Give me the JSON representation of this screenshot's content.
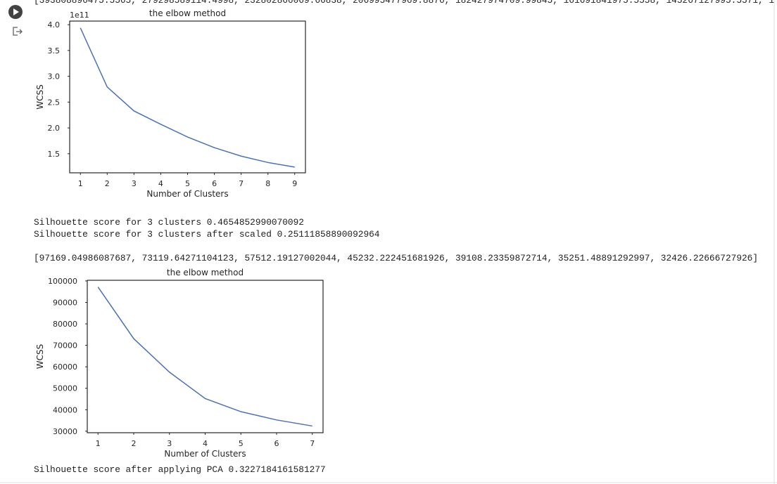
{
  "top_text": "[393808896475.5565, 279298589114.4998, 232802866069.66838, 206995477969.8876, 182427974709.99845, 161691841975.5558, 145267127995.5571, 1",
  "chart_data": [
    {
      "type": "line",
      "title": "the elbow method",
      "xlabel": "Number of Clusters",
      "ylabel": "WCSS",
      "y_offset_label": "1e11",
      "x": [
        1,
        2,
        3,
        4,
        5,
        6,
        7,
        8,
        9
      ],
      "values": [
        3.938,
        2.793,
        2.328,
        2.07,
        1.824,
        1.617,
        1.453,
        1.33,
        1.24
      ],
      "color": "#4c72b0",
      "xlim": [
        0.6,
        9.4
      ],
      "ylim": [
        1.13,
        4.07
      ],
      "xticks": [
        1,
        2,
        3,
        4,
        5,
        6,
        7,
        8,
        9
      ],
      "yticks": [
        {
          "value": 1.5,
          "label": "1.5"
        },
        {
          "value": 2,
          "label": "2.0"
        },
        {
          "value": 2.5,
          "label": "2.5"
        },
        {
          "value": 3,
          "label": "3.0"
        },
        {
          "value": 3.5,
          "label": "3.5"
        },
        {
          "value": 4,
          "label": "4.0"
        }
      ]
    },
    {
      "type": "line",
      "title": "the elbow method",
      "xlabel": "Number of Clusters",
      "ylabel": "WCSS",
      "x": [
        1,
        2,
        3,
        4,
        5,
        6,
        7
      ],
      "values": [
        97169.04986087687,
        73119.64271104123,
        57512.19127002044,
        45232.222451681926,
        39108.23359872714,
        35251.48891292997,
        32426.22666727926
      ],
      "color": "#4c72b0",
      "xlim": [
        0.7,
        7.3
      ],
      "ylim": [
        29300,
        100300
      ],
      "xticks": [
        1,
        2,
        3,
        4,
        5,
        6,
        7
      ],
      "yticks": [
        30000,
        40000,
        50000,
        60000,
        70000,
        80000,
        90000,
        100000
      ]
    }
  ],
  "outputs": [
    "Silhouette score for 3 clusters 0.4654852990070092",
    "Silhouette score for 3 clusters after scaled 0.25111858890092964",
    "[97169.04986087687, 73119.64271104123, 57512.19127002044, 45232.222451681926, 39108.23359872714, 35251.48891292997, 32426.22666727926]",
    "Silhouette score after applying PCA 0.3227184161581277"
  ]
}
